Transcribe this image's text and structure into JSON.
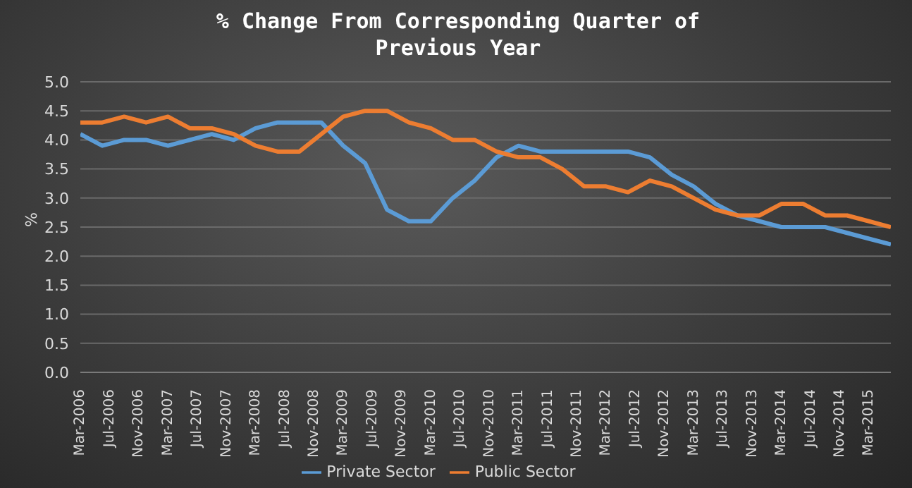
{
  "chart_data": {
    "type": "line",
    "title": "% Change From Corresponding Quarter of Previous Year",
    "ylabel": "%",
    "x": [
      "2006-03",
      "2006-06",
      "2006-09",
      "2006-12",
      "2007-03",
      "2007-06",
      "2007-09",
      "2007-12",
      "2008-03",
      "2008-06",
      "2008-09",
      "2008-12",
      "2009-03",
      "2009-06",
      "2009-09",
      "2009-12",
      "2010-03",
      "2010-06",
      "2010-09",
      "2010-12",
      "2011-03",
      "2011-06",
      "2011-09",
      "2011-12",
      "2012-03",
      "2012-06",
      "2012-09",
      "2012-12",
      "2013-03",
      "2013-06",
      "2013-09",
      "2013-12",
      "2014-03",
      "2014-06",
      "2014-09",
      "2014-12",
      "2015-03",
      "2015-06"
    ],
    "series": [
      {
        "name": "Private Sector",
        "color": "#5b9bd5",
        "values": [
          4.1,
          3.9,
          4.0,
          4.0,
          3.9,
          4.0,
          4.1,
          4.0,
          4.2,
          4.3,
          4.3,
          4.3,
          3.9,
          3.6,
          2.8,
          2.6,
          2.6,
          3.0,
          3.3,
          3.7,
          3.9,
          3.8,
          3.8,
          3.8,
          3.8,
          3.8,
          3.7,
          3.4,
          3.2,
          2.9,
          2.7,
          2.6,
          2.5,
          2.5,
          2.5,
          2.4,
          2.3,
          2.2
        ]
      },
      {
        "name": "Public Sector",
        "color": "#ed7d31",
        "values": [
          4.3,
          4.3,
          4.4,
          4.3,
          4.4,
          4.2,
          4.2,
          4.1,
          3.9,
          3.8,
          3.8,
          4.1,
          4.4,
          4.5,
          4.5,
          4.3,
          4.2,
          4.0,
          4.0,
          3.8,
          3.7,
          3.7,
          3.5,
          3.2,
          3.2,
          3.1,
          3.3,
          3.2,
          3.0,
          2.8,
          2.7,
          2.7,
          2.9,
          2.9,
          2.7,
          2.7,
          2.6,
          2.5
        ]
      }
    ],
    "xlim": [
      "2006-03",
      "2015-06"
    ],
    "xticks": [
      {
        "value": "2006-03",
        "label": "Mar-2006"
      },
      {
        "value": "2006-07",
        "label": "Jul-2006"
      },
      {
        "value": "2006-11",
        "label": "Nov-2006"
      },
      {
        "value": "2007-03",
        "label": "Mar-2007"
      },
      {
        "value": "2007-07",
        "label": "Jul-2007"
      },
      {
        "value": "2007-11",
        "label": "Nov-2007"
      },
      {
        "value": "2008-03",
        "label": "Mar-2008"
      },
      {
        "value": "2008-07",
        "label": "Jul-2008"
      },
      {
        "value": "2008-11",
        "label": "Nov-2008"
      },
      {
        "value": "2009-03",
        "label": "Mar-2009"
      },
      {
        "value": "2009-07",
        "label": "Jul-2009"
      },
      {
        "value": "2009-11",
        "label": "Nov-2009"
      },
      {
        "value": "2010-03",
        "label": "Mar-2010"
      },
      {
        "value": "2010-07",
        "label": "Jul-2010"
      },
      {
        "value": "2010-11",
        "label": "Nov-2010"
      },
      {
        "value": "2011-03",
        "label": "Mar-2011"
      },
      {
        "value": "2011-07",
        "label": "Jul-2011"
      },
      {
        "value": "2011-11",
        "label": "Nov-2011"
      },
      {
        "value": "2012-03",
        "label": "Mar-2012"
      },
      {
        "value": "2012-07",
        "label": "Jul-2012"
      },
      {
        "value": "2012-11",
        "label": "Nov-2012"
      },
      {
        "value": "2013-03",
        "label": "Mar-2013"
      },
      {
        "value": "2013-07",
        "label": "Jul-2013"
      },
      {
        "value": "2013-11",
        "label": "Nov-2013"
      },
      {
        "value": "2014-03",
        "label": "Mar-2014"
      },
      {
        "value": "2014-07",
        "label": "Jul-2014"
      },
      {
        "value": "2014-11",
        "label": "Nov-2014"
      },
      {
        "value": "2015-03",
        "label": "Mar-2015"
      }
    ],
    "ylim": [
      0,
      5
    ],
    "yticks": [
      {
        "value": 0,
        "label": "0.0"
      },
      {
        "value": 0.5,
        "label": "0.5"
      },
      {
        "value": 1,
        "label": "1.0"
      },
      {
        "value": 1.5,
        "label": "1.5"
      },
      {
        "value": 2,
        "label": "2.0"
      },
      {
        "value": 2.5,
        "label": "2.5"
      },
      {
        "value": 3,
        "label": "3.0"
      },
      {
        "value": 3.5,
        "label": "3.5"
      },
      {
        "value": 4,
        "label": "4.0"
      },
      {
        "value": 4.5,
        "label": "4.5"
      },
      {
        "value": 5,
        "label": "5.0"
      }
    ],
    "grid": "y",
    "legend": "bottom",
    "marker": "none",
    "line_style": "solid"
  }
}
